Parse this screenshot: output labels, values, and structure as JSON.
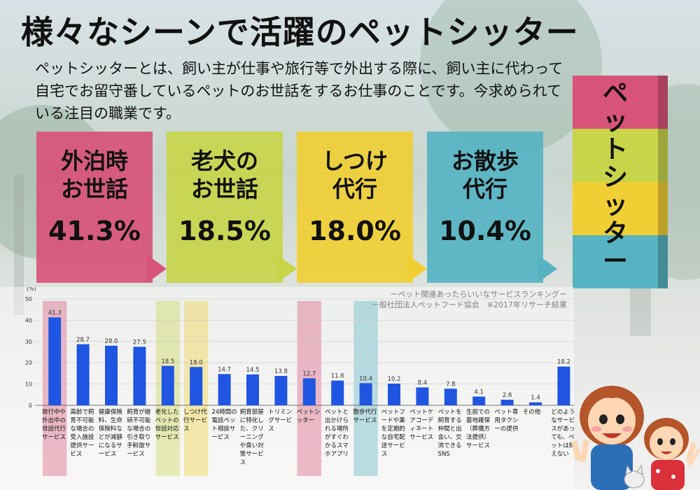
{
  "title": "様々なシーンで活躍のペットシッター",
  "intro": "ペットシッターとは、飼い主が仕事や旅行等で外出する際に、飼い主に代わって自宅でお留守番しているペットのお世話をするお仕事のことです。今求められている注目の職業です。",
  "cards": [
    {
      "label": "外泊時\nお世話",
      "pct": "41.3%",
      "color": "#d8537a"
    },
    {
      "label": "老犬の\nお世話",
      "pct": "18.5%",
      "color": "#c8d54a"
    },
    {
      "label": "しつけ\n代行",
      "pct": "18.0%",
      "color": "#f0cf34"
    },
    {
      "label": "お散歩\n代行",
      "pct": "10.4%",
      "color": "#56b3c2"
    }
  ],
  "tower": {
    "text": [
      "ペ",
      "ッ",
      "ト",
      "シ",
      "ッ",
      "タ",
      "ー"
    ],
    "colors": [
      "#d8537a",
      "#c8d54a",
      "#f0cf34",
      "#56b3c2"
    ]
  },
  "source": {
    "line1": "ーペット関連あったらいいなサービスランキングー",
    "line2": "一般社団法人ペットフード協会　※2017年リサーチ結果"
  },
  "chart_data": {
    "type": "bar",
    "y_unit": "(%)",
    "ylim": [
      0,
      50
    ],
    "yticks": [
      "0",
      "10",
      "20",
      "30",
      "40",
      "50"
    ],
    "bar_color": "#1f55e0",
    "categories": [
      "旅行中や外出中の世話代行サービス",
      "高齢で飼育不可能な場合の受入施設提供サービス",
      "健康保険料、生命保険料などが減額になるサービス",
      "飼育が継続不可能な場合の引き取り手斡旋サービス",
      "老化したペットの世話対応サービス",
      "しつけ代行サービス",
      "24時間の電話ペット相談サービス",
      "飼育部屋に特化した、クリーニングや臭い対策サービス",
      "トリミングサービス",
      "ペットシッター",
      "ペットと出かけられる場所がすぐわかるスマホアプリ",
      "散歩代行サービス",
      "ペットフードや薬を定期的な自宅配送サービス",
      "ペットケアコーディネートサービス",
      "ペットを飼育する仲間と出会い、交流できるSNS",
      "生前での墓地確保（葬儀方法提供）サービス",
      "ペット専用タクシーの提供",
      "その他",
      "どのようなサービスがあっても、ペットは飼えない"
    ],
    "values": [
      41.3,
      28.7,
      28.0,
      27.5,
      18.5,
      18.0,
      14.7,
      14.5,
      13.8,
      12.7,
      11.6,
      10.4,
      10.2,
      8.4,
      7.8,
      4.1,
      2.6,
      1.4,
      18.2
    ],
    "value_labels": [
      "41.3",
      "28.7",
      "28.0",
      "27.5",
      "18.5",
      "18.0",
      "14.7",
      "14.5",
      "13.8",
      "12.7",
      "11.6",
      "10.4",
      "10.2",
      "8.4",
      "7.8",
      "4.1",
      "2.6",
      "1.4",
      "18.2"
    ],
    "highlights": [
      {
        "index": 0,
        "color": "#d8537a"
      },
      {
        "index": 4,
        "color": "#c8d54a"
      },
      {
        "index": 5,
        "color": "#f0cf34"
      },
      {
        "index": 9,
        "color": "#d8537a"
      },
      {
        "index": 11,
        "color": "#56b3c2"
      }
    ]
  }
}
